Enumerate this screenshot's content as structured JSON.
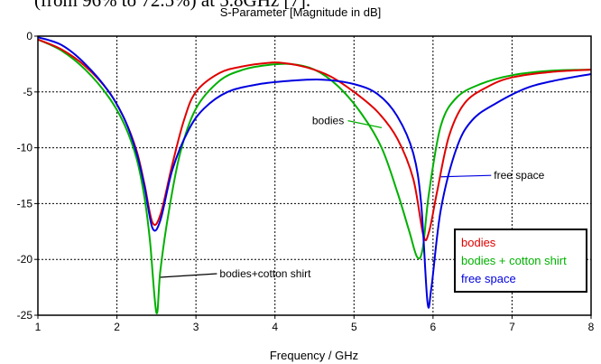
{
  "caption_fragment": "(from 96% to 72.5%) at 5.8GHz [7].",
  "chart_data": {
    "type": "line",
    "title": "S-Parameter [Magnitude in dB]",
    "xlabel": "Frequency / GHz",
    "ylabel": "",
    "xlim": [
      1,
      8
    ],
    "ylim": [
      -25,
      0
    ],
    "xticks": [
      1,
      2,
      3,
      4,
      5,
      6,
      7,
      8
    ],
    "yticks": [
      0,
      -5,
      -10,
      -15,
      -20,
      -25
    ],
    "grid": true,
    "legend_position": "bottom-right",
    "series": [
      {
        "name": "bodies",
        "color": "#e00000",
        "points": [
          [
            1,
            -0.3
          ],
          [
            1.3,
            -1.2
          ],
          [
            1.6,
            -2.7
          ],
          [
            1.9,
            -5
          ],
          [
            2.1,
            -7.5
          ],
          [
            2.25,
            -10.3
          ],
          [
            2.35,
            -13.3
          ],
          [
            2.45,
            -16.7
          ],
          [
            2.55,
            -16
          ],
          [
            2.7,
            -11.5
          ],
          [
            2.85,
            -7.5
          ],
          [
            3,
            -5
          ],
          [
            3.3,
            -3.3
          ],
          [
            3.6,
            -2.7
          ],
          [
            3.9,
            -2.4
          ],
          [
            4.1,
            -2.4
          ],
          [
            4.4,
            -2.8
          ],
          [
            4.7,
            -3.6
          ],
          [
            5,
            -5
          ],
          [
            5.3,
            -6.8
          ],
          [
            5.55,
            -9.2
          ],
          [
            5.75,
            -12.8
          ],
          [
            5.88,
            -17.9
          ],
          [
            5.95,
            -17.5
          ],
          [
            6.05,
            -14
          ],
          [
            6.2,
            -9
          ],
          [
            6.4,
            -6
          ],
          [
            6.7,
            -4.5
          ],
          [
            7,
            -3.7
          ],
          [
            7.5,
            -3.2
          ],
          [
            8,
            -3
          ]
        ]
      },
      {
        "name": "bodies + cotton shirt",
        "color": "#00b000",
        "points": [
          [
            1,
            -0.3
          ],
          [
            1.3,
            -1.3
          ],
          [
            1.6,
            -3
          ],
          [
            1.9,
            -5.5
          ],
          [
            2.1,
            -8
          ],
          [
            2.25,
            -11
          ],
          [
            2.35,
            -14.5
          ],
          [
            2.42,
            -18.5
          ],
          [
            2.5,
            -24.8
          ],
          [
            2.55,
            -21
          ],
          [
            2.65,
            -16
          ],
          [
            2.8,
            -10.5
          ],
          [
            3,
            -6.5
          ],
          [
            3.3,
            -4
          ],
          [
            3.6,
            -3
          ],
          [
            3.9,
            -2.6
          ],
          [
            4.2,
            -2.5
          ],
          [
            4.5,
            -3
          ],
          [
            4.8,
            -4.5
          ],
          [
            5.1,
            -7
          ],
          [
            5.35,
            -10
          ],
          [
            5.55,
            -14
          ],
          [
            5.7,
            -17.5
          ],
          [
            5.8,
            -19.8
          ],
          [
            5.87,
            -19
          ],
          [
            5.95,
            -14
          ],
          [
            6.1,
            -8
          ],
          [
            6.3,
            -5.5
          ],
          [
            6.6,
            -4.3
          ],
          [
            7,
            -3.5
          ],
          [
            7.5,
            -3.1
          ],
          [
            8,
            -3
          ]
        ]
      },
      {
        "name": "free space",
        "color": "#0000e0",
        "points": [
          [
            1,
            -0.1
          ],
          [
            1.3,
            -0.8
          ],
          [
            1.6,
            -2.5
          ],
          [
            1.9,
            -5
          ],
          [
            2.1,
            -7.5
          ],
          [
            2.25,
            -10.5
          ],
          [
            2.35,
            -13.5
          ],
          [
            2.45,
            -17.2
          ],
          [
            2.55,
            -16.5
          ],
          [
            2.7,
            -12
          ],
          [
            2.9,
            -8.5
          ],
          [
            3.1,
            -6.5
          ],
          [
            3.4,
            -5
          ],
          [
            3.8,
            -4.3
          ],
          [
            4.2,
            -4
          ],
          [
            4.6,
            -3.9
          ],
          [
            5,
            -4.3
          ],
          [
            5.3,
            -5.2
          ],
          [
            5.55,
            -7.2
          ],
          [
            5.75,
            -10.5
          ],
          [
            5.85,
            -15
          ],
          [
            5.93,
            -23.8
          ],
          [
            5.98,
            -22.5
          ],
          [
            6.1,
            -15.5
          ],
          [
            6.3,
            -10
          ],
          [
            6.5,
            -7.5
          ],
          [
            6.8,
            -6
          ],
          [
            7.2,
            -4.6
          ],
          [
            7.6,
            -3.9
          ],
          [
            8,
            -3.4
          ]
        ]
      }
    ],
    "annotations": [
      {
        "text": "bodies",
        "x": 4.47,
        "y": -7.9,
        "color": "#00b000",
        "point": [
          5.35,
          -8.2
        ]
      },
      {
        "text": "free space",
        "x": 6.77,
        "y": -12.8,
        "color": "#0000e0",
        "point": [
          6.1,
          -12.6
        ]
      },
      {
        "text": "bodies+cotton shirt",
        "x": 3.3,
        "y": -21.6,
        "color": "#000000",
        "point": [
          2.55,
          -21.6
        ]
      }
    ]
  }
}
